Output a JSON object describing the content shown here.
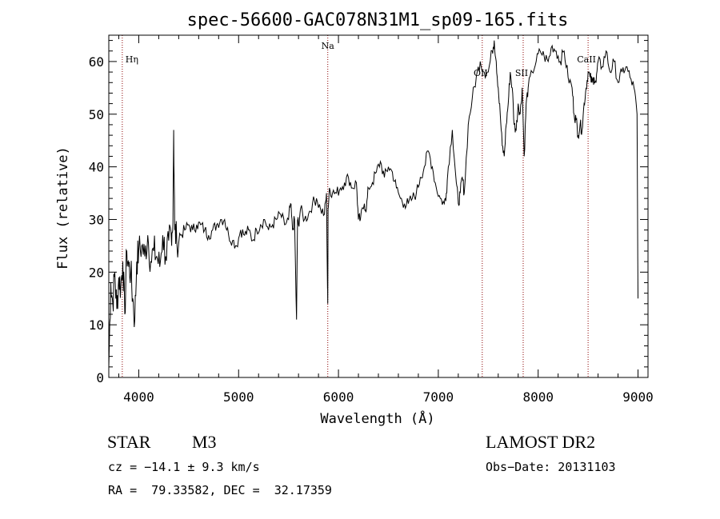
{
  "chart_data": {
    "type": "line",
    "title": "spec-56600-GAC078N31M1_sp09-165.fits",
    "xlabel": "Wavelength (Å)",
    "ylabel": "Flux (relative)",
    "xlim": [
      3700,
      9100
    ],
    "ylim": [
      0,
      65
    ],
    "x_ticks": [
      4000,
      5000,
      6000,
      7000,
      8000,
      9000
    ],
    "x_tick_labels": [
      "4000",
      "5000",
      "6000",
      "7000",
      "8000",
      "9000"
    ],
    "y_ticks": [
      0,
      10,
      20,
      30,
      40,
      50,
      60
    ],
    "y_tick_labels": [
      "0",
      "10",
      "20",
      "30",
      "40",
      "50",
      "60"
    ],
    "grid": false,
    "line_color": "#000000",
    "marker_color": "#8b0000",
    "spectral_lines": [
      {
        "label": "Hη",
        "wavelength": 3835
      },
      {
        "label": "Na",
        "wavelength": 5893
      },
      {
        "label": "OII",
        "wavelength": 7440
      },
      {
        "label": "SII",
        "wavelength": 7850
      },
      {
        "label": "CaII",
        "wavelength": 8500
      }
    ],
    "series": [
      {
        "x": [
          3700,
          3720,
          3740,
          3760,
          3780,
          3800,
          3820,
          3840,
          3860,
          3880,
          3900,
          3920,
          3940,
          3960,
          3980,
          4000,
          4030,
          4060,
          4090,
          4120,
          4150,
          4180,
          4210,
          4240,
          4270,
          4300,
          4330,
          4340,
          4350,
          4360,
          4380,
          4420,
          4460,
          4500,
          4540,
          4580,
          4620,
          4660,
          4700,
          4740,
          4780,
          4820,
          4860,
          4900,
          4940,
          4980,
          5020,
          5060,
          5100,
          5140,
          5180,
          5220,
          5260,
          5300,
          5340,
          5380,
          5420,
          5460,
          5500,
          5520,
          5540,
          5560,
          5580,
          5590,
          5600,
          5620,
          5660,
          5700,
          5740,
          5780,
          5820,
          5860,
          5880,
          5890,
          5893,
          5896,
          5910,
          5940,
          5980,
          6020,
          6060,
          6100,
          6140,
          6180,
          6200,
          6220,
          6260,
          6280,
          6300,
          6340,
          6380,
          6420,
          6460,
          6500,
          6540,
          6580,
          6620,
          6660,
          6700,
          6740,
          6780,
          6820,
          6860,
          6900,
          6940,
          6980,
          7020,
          7060,
          7080,
          7100,
          7140,
          7180,
          7200,
          7220,
          7240,
          7260,
          7300,
          7340,
          7380,
          7420,
          7460,
          7500,
          7540,
          7560,
          7580,
          7600,
          7620,
          7640,
          7660,
          7680,
          7700,
          7720,
          7740,
          7760,
          7780,
          7800,
          7820,
          7840,
          7860,
          7880,
          7900,
          7940,
          7980,
          8020,
          8060,
          8100,
          8140,
          8180,
          8220,
          8260,
          8300,
          8340,
          8360,
          8380,
          8400,
          8420,
          8440,
          8460,
          8480,
          8500,
          8520,
          8540,
          8560,
          8580,
          8600,
          8640,
          8680,
          8720,
          8760,
          8800,
          8840,
          8880,
          8920,
          8960,
          8990,
          9000
        ],
        "y": [
          2,
          18,
          14,
          20,
          13,
          19,
          17,
          22,
          12,
          24,
          21,
          20,
          15,
          11,
          22,
          24,
          25,
          23,
          27,
          22,
          24,
          23,
          21,
          27,
          23,
          26,
          25,
          28,
          47,
          28,
          26,
          27,
          28,
          29,
          28,
          29,
          29,
          28,
          27,
          28,
          29,
          30,
          30,
          27,
          26,
          25,
          28,
          27,
          28,
          26,
          28,
          29,
          30,
          28,
          29,
          30,
          31,
          29,
          30,
          33,
          28,
          30,
          11,
          30,
          29,
          32,
          30,
          31,
          33,
          34,
          32,
          31,
          35,
          18,
          14,
          32,
          36,
          35,
          35,
          36,
          37,
          38,
          36,
          37,
          30,
          30,
          33,
          32,
          36,
          37,
          39,
          41,
          38,
          40,
          39,
          36,
          34,
          33,
          33,
          34,
          35,
          38,
          40,
          43,
          40,
          36,
          34,
          33,
          35,
          40,
          47,
          37,
          33,
          35,
          38,
          35,
          48,
          53,
          57,
          60,
          58,
          58,
          62,
          64,
          60,
          55,
          50,
          44,
          42,
          48,
          52,
          58,
          55,
          48,
          47,
          52,
          50,
          55,
          42,
          52,
          55,
          58,
          60,
          62,
          61,
          60,
          63,
          62,
          60,
          62,
          57,
          55,
          50,
          49,
          46,
          48,
          47,
          52,
          55,
          58,
          57,
          56,
          57,
          56,
          60,
          59,
          62,
          58,
          60,
          56,
          58,
          59,
          57,
          55,
          50,
          15
        ]
      }
    ]
  },
  "info": {
    "object_class": "STAR",
    "subclass": "M3",
    "survey": "LAMOST DR2",
    "redshift_text": "cz = −14.1 ± 9.3 km/s",
    "obs_date_text": "Obs−Date: 20131103",
    "coords_text": "RA =  79.33582, DEC =  32.17359"
  }
}
